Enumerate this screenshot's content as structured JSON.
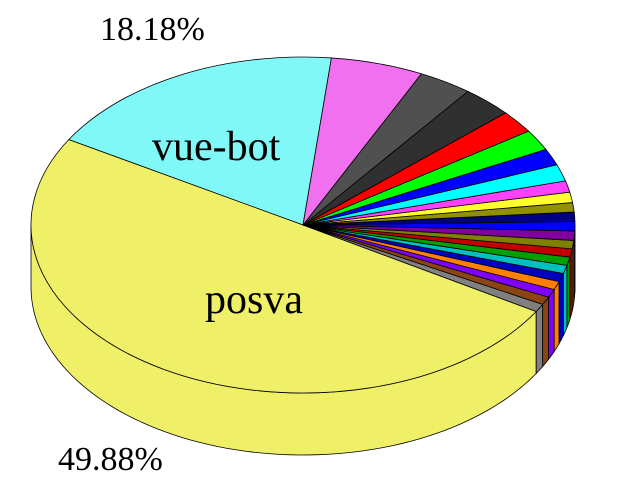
{
  "chart_data": {
    "type": "pie3d",
    "categories": [
      "vue-bot",
      "posva",
      null,
      null,
      null,
      null,
      null,
      null,
      null,
      null,
      null,
      null,
      null,
      null,
      null,
      null,
      null,
      null,
      null,
      null,
      null,
      null,
      null,
      null
    ],
    "values": [
      18.18,
      49.88,
      0.77,
      0.77,
      0.8,
      0.8,
      0.8,
      0.8,
      0.8,
      0.8,
      0.8,
      0.9,
      0.9,
      0.9,
      0.9,
      1.0,
      1.1,
      1.6,
      1.6,
      2.0,
      2.2,
      3.0,
      3.2,
      5.5
    ],
    "value_labels": [
      "18.18%",
      "49.88%",
      null,
      null,
      null,
      null,
      null,
      null,
      null,
      null,
      null,
      null,
      null,
      null,
      null,
      null,
      null,
      null,
      null,
      null,
      null,
      null,
      null,
      null
    ],
    "colors": [
      "#80f8f8",
      "#f0f068",
      "#808080",
      "#8b4513",
      "#8000ff",
      "#ff8000",
      "#0000c0",
      "#00c0c0",
      "#00a000",
      "#c00000",
      "#808000",
      "#8000a0",
      "#0000ff",
      "#000080",
      "#909000",
      "#ffff30",
      "#ff40ff",
      "#00ffff",
      "#0000ff",
      "#00ff00",
      "#ff0000",
      "#303030",
      "#505050",
      "#f070f0"
    ]
  }
}
